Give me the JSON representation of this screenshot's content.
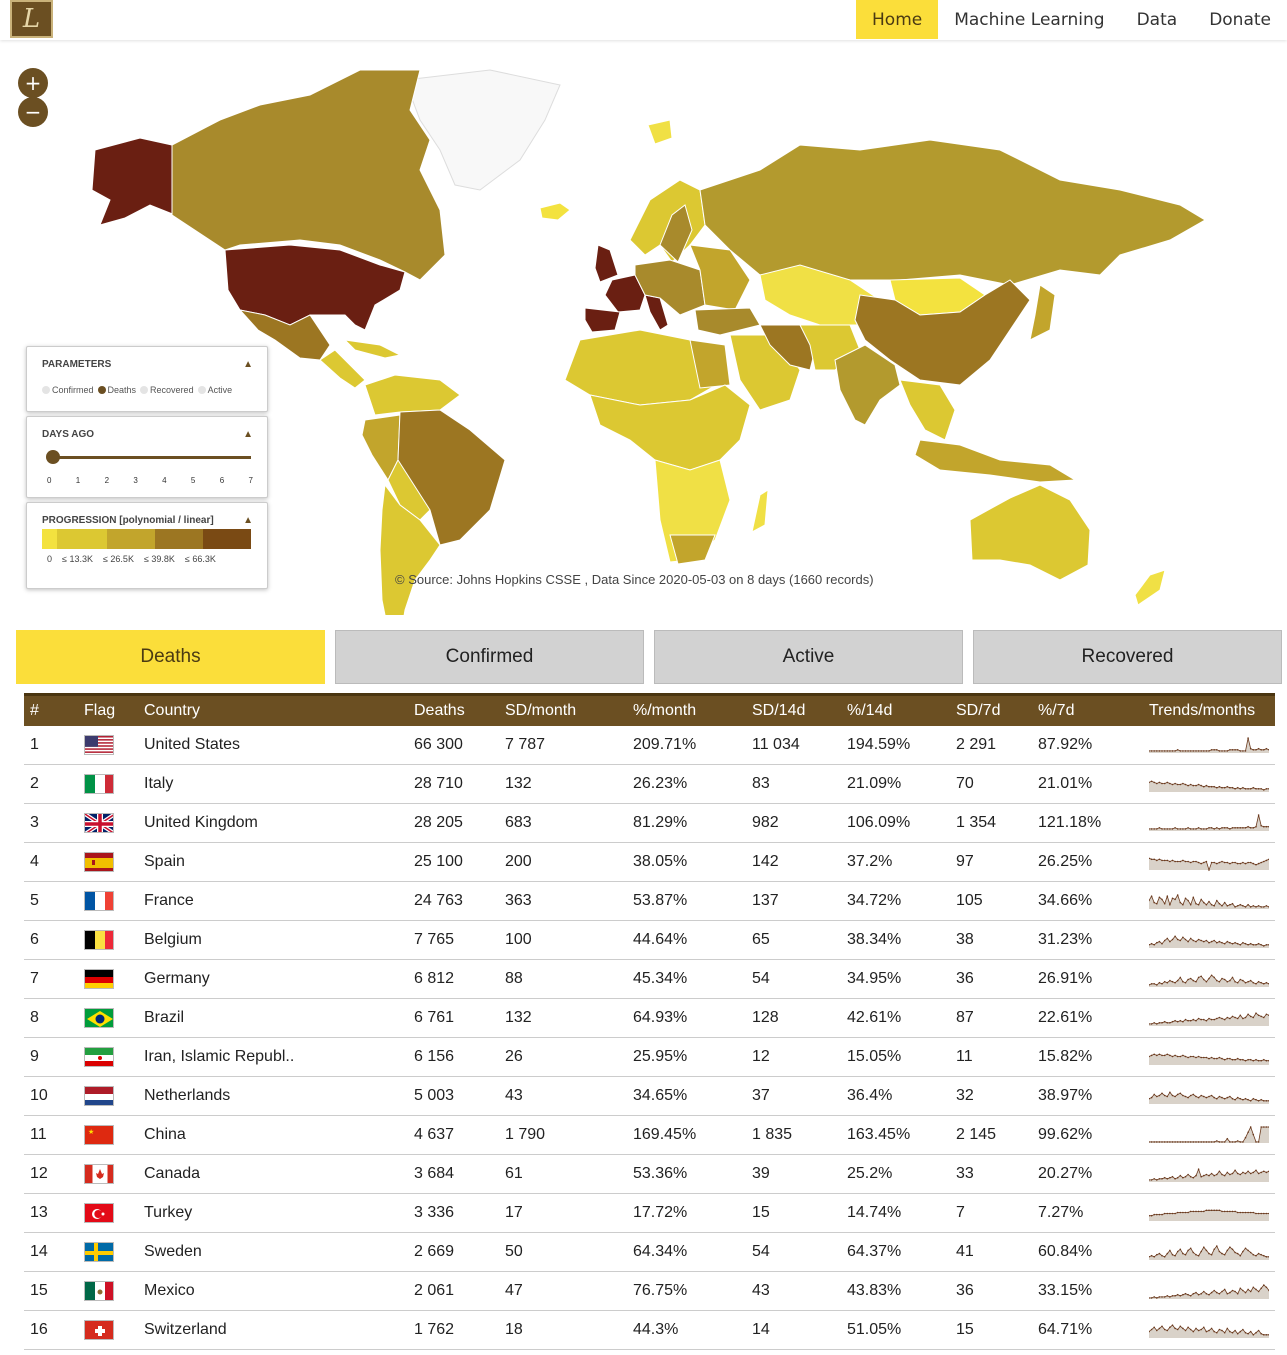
{
  "header": {
    "logo_letter": "L",
    "nav": [
      {
        "label": "Home",
        "active": true
      },
      {
        "label": "Machine Learning",
        "active": false
      },
      {
        "label": "Data",
        "active": false
      },
      {
        "label": "Donate",
        "active": false
      }
    ]
  },
  "map": {
    "zoom_in": "+",
    "zoom_out": "−",
    "source_text": "© Source: Johns Hopkins CSSE , Data Since 2020-05-03 on 8 days (1660 records)",
    "parameters": {
      "title": "PARAMETERS",
      "options": [
        {
          "label": "Confirmed",
          "selected": false
        },
        {
          "label": "Deaths",
          "selected": true
        },
        {
          "label": "Recovered",
          "selected": false
        },
        {
          "label": "Active",
          "selected": false
        }
      ]
    },
    "days_ago": {
      "title": "DAYS AGO",
      "value": 0,
      "ticks": [
        "0",
        "1",
        "2",
        "3",
        "4",
        "5",
        "6",
        "7"
      ]
    },
    "progression": {
      "title": "PROGRESSION  [polynomial / linear]",
      "labels": [
        "0",
        "≤  13.3K",
        "≤  26.5K",
        "≤  39.8K",
        "≤  66.3K"
      ],
      "colors": [
        "#f3e23f",
        "#dcc832",
        "#c2a52c",
        "#9c7622",
        "#7a4a14"
      ]
    },
    "collapse_icon": "▲"
  },
  "tabs": [
    {
      "label": "Deaths",
      "active": true
    },
    {
      "label": "Confirmed",
      "active": false
    },
    {
      "label": "Active",
      "active": false
    },
    {
      "label": "Recovered",
      "active": false
    }
  ],
  "table": {
    "headers": [
      "#",
      "Flag",
      "Country",
      "Deaths",
      "SD/month",
      "%/month",
      "SD/14d",
      "%/14d",
      "SD/7d",
      "%/7d",
      "Trends/months"
    ],
    "rows": [
      {
        "num": "1",
        "flag": "us",
        "country": "United States",
        "deaths": "66 300",
        "sd_month": "7 787",
        "pct_month": "209.71%",
        "sd_14d": "11 034",
        "pct_14d": "194.59%",
        "sd_7d": "2 291",
        "pct_7d": "87.92%",
        "trend": [
          2,
          2,
          2,
          2,
          2,
          2,
          2,
          2,
          2,
          2,
          2,
          3,
          2,
          2,
          2,
          2,
          2,
          2,
          2,
          2,
          2,
          2,
          2,
          2,
          3,
          3,
          3,
          2,
          2,
          2,
          2,
          3,
          3,
          3,
          3,
          2,
          2,
          2,
          14,
          4,
          3,
          3,
          4,
          3,
          3,
          4,
          3
        ]
      },
      {
        "num": "2",
        "flag": "it",
        "country": "Italy",
        "deaths": "28 710",
        "sd_month": "132",
        "pct_month": "26.23%",
        "sd_14d": "83",
        "pct_14d": "21.09%",
        "sd_7d": "70",
        "pct_7d": "21.01%",
        "trend": [
          9,
          10,
          9,
          8,
          9,
          8,
          8,
          9,
          8,
          7,
          8,
          7,
          7,
          8,
          7,
          6,
          7,
          6,
          6,
          7,
          6,
          5,
          6,
          5,
          5,
          5,
          4,
          5,
          4,
          4,
          5,
          4,
          4,
          3,
          4,
          3,
          4,
          3,
          3,
          3,
          4,
          3,
          3,
          3,
          2,
          3,
          3
        ]
      },
      {
        "num": "3",
        "flag": "gb",
        "country": "United Kingdom",
        "deaths": "28 205",
        "sd_month": "683",
        "pct_month": "81.29%",
        "sd_14d": "982",
        "pct_14d": "106.09%",
        "sd_7d": "1 354",
        "pct_7d": "121.18%",
        "trend": [
          2,
          2,
          2,
          2,
          3,
          2,
          2,
          2,
          2,
          2,
          3,
          2,
          2,
          2,
          2,
          3,
          2,
          2,
          2,
          3,
          2,
          2,
          2,
          3,
          3,
          2,
          3,
          2,
          3,
          3,
          3,
          2,
          3,
          3,
          3,
          3,
          3,
          3,
          4,
          3,
          3,
          4,
          15,
          5,
          4,
          4,
          4
        ]
      },
      {
        "num": "4",
        "flag": "es",
        "country": "Spain",
        "deaths": "25 100",
        "sd_month": "200",
        "pct_month": "38.05%",
        "sd_14d": "142",
        "pct_14d": "37.2%",
        "sd_7d": "97",
        "pct_7d": "26.25%",
        "trend": [
          11,
          10,
          10,
          9,
          10,
          9,
          9,
          9,
          8,
          9,
          8,
          8,
          8,
          9,
          8,
          8,
          7,
          8,
          8,
          7,
          6,
          7,
          8,
          0,
          7,
          7,
          6,
          7,
          8,
          7,
          7,
          6,
          7,
          7,
          6,
          6,
          7,
          6,
          7,
          7,
          6,
          5,
          6,
          7,
          8,
          9,
          10
        ]
      },
      {
        "num": "5",
        "flag": "fr",
        "country": "France",
        "deaths": "24 763",
        "sd_month": "363",
        "pct_month": "53.87%",
        "sd_14d": "137",
        "pct_14d": "34.72%",
        "sd_7d": "105",
        "pct_7d": "34.66%",
        "trend": [
          8,
          12,
          6,
          5,
          11,
          9,
          5,
          12,
          4,
          10,
          9,
          13,
          6,
          4,
          10,
          8,
          4,
          11,
          5,
          4,
          9,
          6,
          4,
          7,
          4,
          3,
          8,
          5,
          3,
          6,
          3,
          4,
          5,
          2,
          3,
          4,
          3,
          2,
          4,
          2,
          3,
          2,
          3,
          2,
          2,
          3,
          2
        ]
      },
      {
        "num": "6",
        "flag": "be",
        "country": "Belgium",
        "deaths": "7 765",
        "sd_month": "100",
        "pct_month": "44.64%",
        "sd_14d": "65",
        "pct_14d": "38.34%",
        "sd_7d": "38",
        "pct_7d": "31.23%",
        "trend": [
          3,
          4,
          3,
          5,
          6,
          4,
          7,
          9,
          6,
          8,
          11,
          8,
          7,
          10,
          8,
          6,
          9,
          7,
          6,
          8,
          7,
          6,
          7,
          5,
          6,
          7,
          5,
          6,
          5,
          4,
          6,
          5,
          4,
          5,
          4,
          3,
          5,
          4,
          3,
          4,
          3,
          3,
          4,
          3,
          2,
          3,
          3
        ]
      },
      {
        "num": "7",
        "flag": "de",
        "country": "Germany",
        "deaths": "6 812",
        "sd_month": "88",
        "pct_month": "45.34%",
        "sd_14d": "54",
        "pct_14d": "34.95%",
        "sd_7d": "36",
        "pct_7d": "26.91%",
        "trend": [
          2,
          3,
          3,
          2,
          4,
          3,
          5,
          4,
          6,
          5,
          4,
          6,
          9,
          5,
          4,
          7,
          8,
          6,
          5,
          9,
          10,
          7,
          5,
          8,
          11,
          9,
          6,
          5,
          8,
          7,
          5,
          6,
          9,
          5,
          4,
          7,
          6,
          4,
          5,
          6,
          4,
          3,
          5,
          4,
          3,
          4,
          3
        ]
      },
      {
        "num": "8",
        "flag": "br",
        "country": "Brazil",
        "deaths": "6 761",
        "sd_month": "132",
        "pct_month": "64.93%",
        "sd_14d": "128",
        "pct_14d": "42.61%",
        "sd_7d": "87",
        "pct_7d": "22.61%",
        "trend": [
          2,
          2,
          3,
          2,
          3,
          3,
          4,
          3,
          3,
          4,
          5,
          4,
          5,
          4,
          6,
          5,
          5,
          6,
          5,
          7,
          6,
          6,
          5,
          7,
          6,
          6,
          7,
          8,
          7,
          6,
          8,
          7,
          9,
          8,
          7,
          10,
          7,
          8,
          11,
          9,
          8,
          12,
          10,
          9,
          8,
          11,
          10
        ]
      },
      {
        "num": "9",
        "flag": "ir",
        "country": "Iran, Islamic Republ..",
        "deaths": "6 156",
        "sd_month": "26",
        "pct_month": "25.95%",
        "sd_14d": "12",
        "pct_14d": "15.05%",
        "sd_7d": "11",
        "pct_7d": "15.82%",
        "trend": [
          8,
          9,
          10,
          9,
          10,
          9,
          9,
          10,
          9,
          8,
          9,
          8,
          8,
          9,
          8,
          7,
          8,
          8,
          7,
          8,
          7,
          7,
          7,
          6,
          7,
          6,
          6,
          7,
          6,
          5,
          6,
          6,
          5,
          5,
          6,
          5,
          5,
          4,
          5,
          5,
          4,
          5,
          4,
          4,
          5,
          4,
          4
        ]
      },
      {
        "num": "10",
        "flag": "nl",
        "country": "Netherlands",
        "deaths": "5 003",
        "sd_month": "43",
        "pct_month": "34.65%",
        "sd_14d": "37",
        "pct_14d": "36.4%",
        "sd_7d": "32",
        "pct_7d": "38.97%",
        "trend": [
          5,
          6,
          9,
          7,
          8,
          10,
          8,
          7,
          11,
          8,
          7,
          9,
          10,
          8,
          7,
          6,
          8,
          9,
          7,
          6,
          8,
          7,
          6,
          7,
          8,
          6,
          5,
          7,
          6,
          5,
          6,
          7,
          5,
          4,
          6,
          5,
          4,
          5,
          4,
          3,
          5,
          4,
          3,
          4,
          3,
          3,
          3
        ]
      },
      {
        "num": "11",
        "flag": "cn",
        "country": "China",
        "deaths": "4 637",
        "sd_month": "1 790",
        "pct_month": "169.45%",
        "sd_14d": "1 835",
        "pct_14d": "163.45%",
        "sd_7d": "2 145",
        "pct_7d": "99.62%",
        "trend": [
          1,
          1,
          1,
          1,
          1,
          1,
          1,
          1,
          1,
          1,
          1,
          1,
          1,
          1,
          1,
          1,
          1,
          1,
          1,
          1,
          1,
          1,
          1,
          1,
          1,
          1,
          2,
          1,
          1,
          1,
          4,
          1,
          1,
          1,
          2,
          1,
          1,
          5,
          10,
          15,
          8,
          1,
          1,
          15,
          15,
          15,
          15
        ]
      },
      {
        "num": "12",
        "flag": "ca",
        "country": "Canada",
        "deaths": "3 684",
        "sd_month": "61",
        "pct_month": "53.36%",
        "sd_14d": "39",
        "pct_14d": "25.2%",
        "sd_7d": "33",
        "pct_7d": "20.27%",
        "trend": [
          2,
          2,
          3,
          2,
          3,
          3,
          4,
          3,
          4,
          5,
          3,
          4,
          6,
          4,
          5,
          7,
          5,
          4,
          6,
          12,
          5,
          6,
          7,
          6,
          8,
          6,
          7,
          10,
          7,
          6,
          9,
          7,
          8,
          11,
          8,
          7,
          9,
          8,
          10,
          8,
          9,
          11,
          8,
          9,
          10,
          9,
          10
        ]
      },
      {
        "num": "13",
        "flag": "tr",
        "country": "Turkey",
        "deaths": "3 336",
        "sd_month": "17",
        "pct_month": "17.72%",
        "sd_14d": "15",
        "pct_14d": "14.74%",
        "sd_7d": "7",
        "pct_7d": "7.27%",
        "trend": [
          5,
          5,
          6,
          6,
          6,
          6,
          7,
          7,
          7,
          7,
          7,
          8,
          8,
          8,
          8,
          8,
          9,
          9,
          9,
          9,
          9,
          9,
          10,
          10,
          10,
          10,
          10,
          10,
          9,
          9,
          9,
          9,
          9,
          9,
          8,
          8,
          8,
          8,
          8,
          8,
          8,
          7,
          7,
          7,
          7,
          7,
          7
        ]
      },
      {
        "num": "14",
        "flag": "se",
        "country": "Sweden",
        "deaths": "2 669",
        "sd_month": "50",
        "pct_month": "64.34%",
        "sd_14d": "54",
        "pct_14d": "64.37%",
        "sd_7d": "41",
        "pct_7d": "60.84%",
        "trend": [
          3,
          4,
          3,
          5,
          6,
          4,
          3,
          6,
          9,
          5,
          4,
          8,
          10,
          6,
          5,
          9,
          11,
          7,
          5,
          4,
          8,
          12,
          9,
          6,
          5,
          10,
          13,
          8,
          6,
          5,
          9,
          12,
          10,
          7,
          6,
          4,
          8,
          11,
          9,
          7,
          5,
          4,
          6,
          5,
          4,
          3,
          3
        ]
      },
      {
        "num": "15",
        "flag": "mx",
        "country": "Mexico",
        "deaths": "2 061",
        "sd_month": "47",
        "pct_month": "76.75%",
        "sd_14d": "43",
        "pct_14d": "43.83%",
        "sd_7d": "36",
        "pct_7d": "33.15%",
        "trend": [
          1,
          1,
          2,
          1,
          2,
          2,
          2,
          3,
          2,
          3,
          3,
          4,
          3,
          4,
          5,
          4,
          3,
          5,
          6,
          4,
          5,
          7,
          5,
          4,
          6,
          8,
          6,
          5,
          7,
          9,
          5,
          6,
          8,
          7,
          5,
          10,
          8,
          6,
          9,
          7,
          11,
          9,
          7,
          10,
          13,
          11,
          8
        ]
      },
      {
        "num": "16",
        "flag": "ch",
        "country": "Switzerland",
        "deaths": "1 762",
        "sd_month": "18",
        "pct_month": "44.3%",
        "sd_14d": "14",
        "pct_14d": "51.05%",
        "sd_7d": "15",
        "pct_7d": "64.71%",
        "trend": [
          6,
          8,
          10,
          7,
          9,
          11,
          8,
          7,
          10,
          12,
          9,
          8,
          11,
          9,
          7,
          10,
          8,
          6,
          9,
          7,
          8,
          10,
          6,
          7,
          9,
          6,
          5,
          8,
          7,
          5,
          9,
          6,
          5,
          7,
          4,
          6,
          8,
          5,
          4,
          6,
          3,
          5,
          7,
          4,
          3,
          3,
          3
        ]
      }
    ]
  }
}
